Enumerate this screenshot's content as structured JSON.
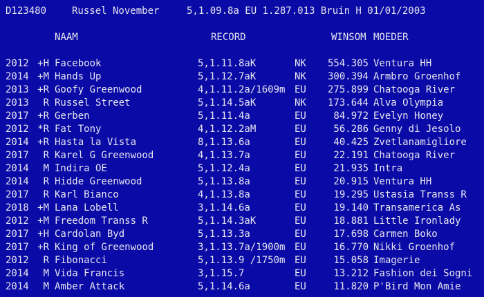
{
  "header": {
    "id": "D123480",
    "horse": "Russel November",
    "details": "5,1.09.8a EU 1.287.013 Bruin H 01/01/2003"
  },
  "columns": {
    "name": "NAAM",
    "record": "RECORD",
    "winnings": "WINSOM",
    "mother": "MOEDER"
  },
  "rows": [
    [
      "2012",
      "+H",
      "Facebook",
      "5,1.11.8aK",
      "NK",
      "554.305",
      "Ventura HH"
    ],
    [
      "2014",
      "+M",
      "Hands Up",
      "5,1.12.7aK",
      "NK",
      "300.394",
      "Armbro Groenhof"
    ],
    [
      "2013",
      "+R",
      "Goofy Greenwood",
      "4,1.11.2a/1609m",
      "EU",
      "275.899",
      "Chatooga River"
    ],
    [
      "2013",
      "R",
      "Russel Street",
      "5,1.14.5aK",
      "NK",
      "173.644",
      "Alva Olympia"
    ],
    [
      "2017",
      "+R",
      "Gerben",
      "5,1.11.4a",
      "EU",
      "84.972",
      "Evelyn Honey"
    ],
    [
      "2012",
      "*R",
      "Fat Tony",
      "4,1.12.2aM",
      "EU",
      "56.286",
      "Genny di Jesolo"
    ],
    [
      "2014",
      "+R",
      "Hasta la Vista",
      "8,1.13.6a",
      "EU",
      "40.425",
      "Zvetlanamigliore"
    ],
    [
      "2017",
      "R",
      "Karel G Greenwood",
      "4,1.13.7a",
      "EU",
      "22.191",
      "Chatooga River"
    ],
    [
      "2014",
      "M",
      "Indira OE",
      "5,1.12.4a",
      "EU",
      "21.935",
      "Intra"
    ],
    [
      "2014",
      "R",
      "Hidde Greenwood",
      "5,1.13.8a",
      "EU",
      "20.915",
      "Ventura HH"
    ],
    [
      "2017",
      "R",
      "Karl Bianco",
      "4,1.13.8a",
      "EU",
      "19.295",
      "Ustasia Transs R"
    ],
    [
      "2018",
      "+M",
      "Lana Lobell",
      "3,1.14.6a",
      "EU",
      "19.140",
      "Transamerica As"
    ],
    [
      "2012",
      "+M",
      "Freedom Transs R",
      "5,1.14.3aK",
      "EU",
      "18.881",
      "Little Ironlady"
    ],
    [
      "2017",
      "+H",
      "Cardolan Byd",
      "5,1.13.3a",
      "EU",
      "17.698",
      "Carmen Boko"
    ],
    [
      "2017",
      "+R",
      "King of Greenwood",
      "3,1.13.7a/1900m",
      "EU",
      "16.770",
      "Nikki Groenhof"
    ],
    [
      "2012",
      "R",
      "Fibonacci",
      "5,1.13.9 /1750m",
      "EU",
      "15.058",
      "Imagerie"
    ],
    [
      "2014",
      "M",
      "Vida Francis",
      "3,1.15.7",
      "EU",
      "13.212",
      "Fashion dei Sogni"
    ],
    [
      "2014",
      "M",
      "Amber Attack",
      "5,1.14.6a",
      "EU",
      "11.820",
      "P'Bird Mon Amie"
    ]
  ]
}
